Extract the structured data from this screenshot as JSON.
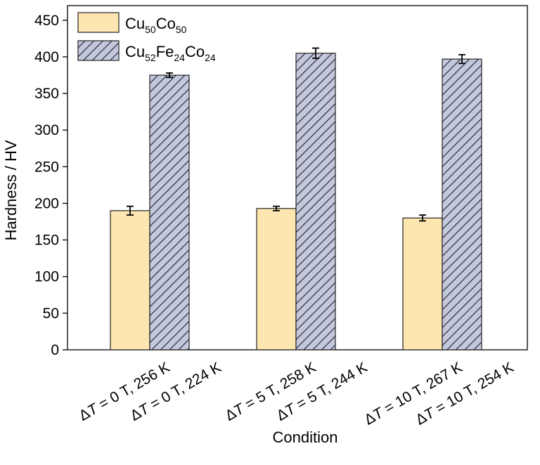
{
  "chart_data": {
    "type": "bar",
    "xlabel": "Condition",
    "ylabel": "Hardness / HV",
    "ylim": [
      0,
      470
    ],
    "yticks": [
      0,
      50,
      100,
      150,
      200,
      250,
      300,
      350,
      400,
      450
    ],
    "grid": false,
    "legend_position": "top-left",
    "categories": [
      {
        "first": {
          "sym": "Δ",
          "var": "T",
          "rest": " = 0 T, 256 K"
        },
        "second": {
          "sym": "Δ",
          "var": "T",
          "rest": " = 0 T, 224 K"
        }
      },
      {
        "first": {
          "sym": "Δ",
          "var": "T",
          "rest": " = 5 T, 258 K"
        },
        "second": {
          "sym": "Δ",
          "var": "T",
          "rest": " = 5 T, 244 K"
        }
      },
      {
        "first": {
          "sym": "Δ",
          "var": "T",
          "rest": " = 10 T, 267 K"
        },
        "second": {
          "sym": "Δ",
          "var": "T",
          "rest": " = 10 T, 254 K"
        }
      }
    ],
    "series": [
      {
        "name": [
          {
            "t": "Cu",
            "sub": false
          },
          {
            "t": "50",
            "sub": true
          },
          {
            "t": "Co",
            "sub": false
          },
          {
            "t": "50",
            "sub": true
          }
        ],
        "values": [
          190,
          193,
          180
        ],
        "errors": [
          6,
          3,
          4
        ],
        "color": "#fde6b0",
        "pattern": "solid"
      },
      {
        "name": [
          {
            "t": "Cu",
            "sub": false
          },
          {
            "t": "52",
            "sub": true
          },
          {
            "t": "Fe",
            "sub": false
          },
          {
            "t": "24",
            "sub": true
          },
          {
            "t": "Co",
            "sub": false
          },
          {
            "t": "24",
            "sub": true
          }
        ],
        "values": [
          375,
          405,
          397
        ],
        "errors": [
          3,
          7,
          6
        ],
        "color": "#c4c8dc",
        "pattern": "hatched"
      }
    ]
  }
}
